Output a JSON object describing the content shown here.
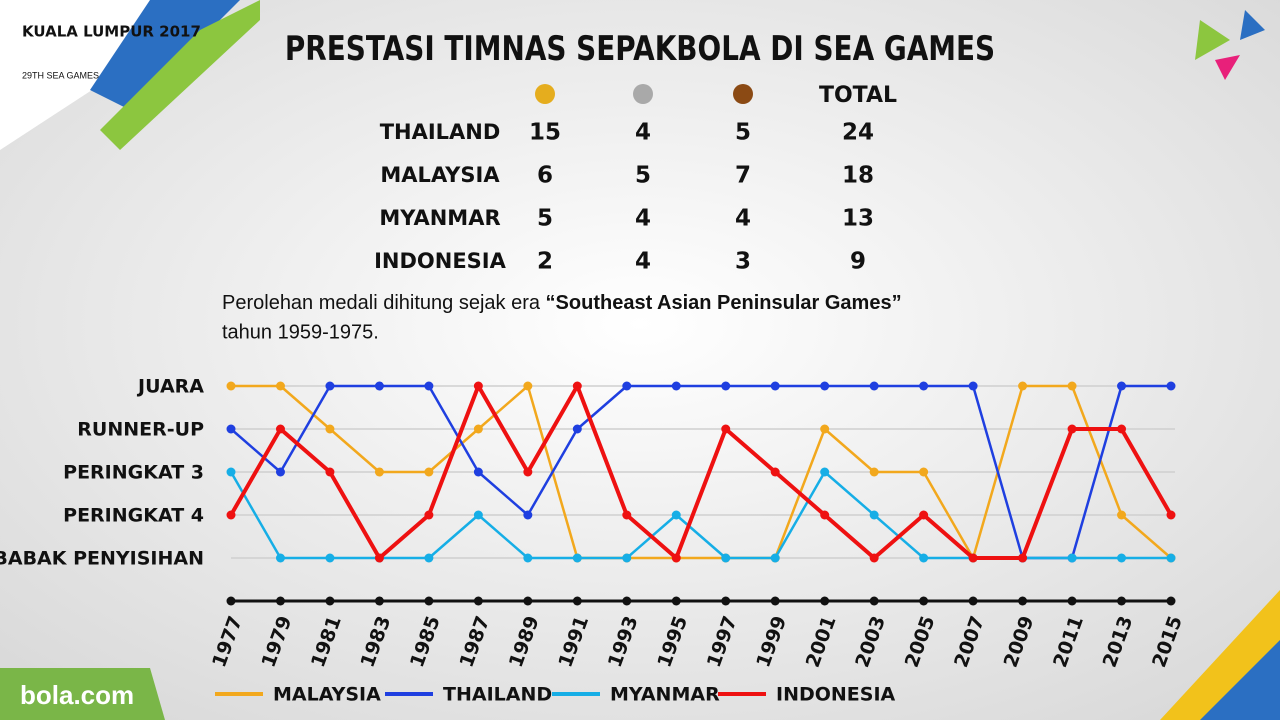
{
  "logo": {
    "event": "KUALA LUMPUR 2017",
    "edition": "29TH SEA GAMES",
    "brand": "bola.com"
  },
  "header": {
    "title": "PRESTASI TIMNAS SEPAKBOLA DI SEA GAMES"
  },
  "medal_table": {
    "medal_colors": [
      "#e5ad1e",
      "#a9a9a9",
      "#8b4a14"
    ],
    "total_header": "TOTAL",
    "rows": [
      [
        "THAILAND",
        "15",
        "4",
        "5",
        "24"
      ],
      [
        "MALAYSIA",
        "6",
        "5",
        "7",
        "18"
      ],
      [
        "MYANMAR",
        "5",
        "4",
        "4",
        "13"
      ],
      [
        "INDONESIA",
        "2",
        "4",
        "3",
        "9"
      ]
    ]
  },
  "note": {
    "text": "Perolehan medali dihitung sejak era ",
    "highlight": "“Southeast Asian Peninsular Games”",
    "tail": "tahun 1959-1975."
  },
  "chart_data": {
    "type": "line",
    "categories": [
      "1977",
      "1979",
      "1981",
      "1983",
      "1985",
      "1987",
      "1989",
      "1991",
      "1993",
      "1995",
      "1997",
      "1999",
      "2001",
      "2003",
      "2005",
      "2007",
      "2009",
      "2011",
      "2013",
      "2015"
    ],
    "ylim": [
      6,
      1
    ],
    "yticks": [
      {
        "value": 1,
        "label": "JUARA"
      },
      {
        "value": 2,
        "label": "RUNNER-UP"
      },
      {
        "value": 3,
        "label": "PERINGKAT 3"
      },
      {
        "value": 4,
        "label": "PERINGKAT 4"
      },
      {
        "value": 5,
        "label": "BABAK PENYISIHAN"
      }
    ],
    "grid": true,
    "series": [
      {
        "name": "MALAYSIA",
        "color": "#f2a81d",
        "values": [
          1,
          1,
          2,
          3,
          3,
          2,
          1,
          5,
          5,
          5,
          5,
          5,
          2,
          3,
          3,
          5,
          1,
          1,
          4,
          5
        ]
      },
      {
        "name": "THAILAND",
        "color": "#1f3fe0",
        "values": [
          2,
          3,
          1,
          1,
          1,
          3,
          4,
          2,
          1,
          1,
          1,
          1,
          1,
          1,
          1,
          1,
          5,
          5,
          1,
          1
        ]
      },
      {
        "name": "MYANMAR",
        "color": "#16aee6",
        "values": [
          3,
          5,
          5,
          5,
          5,
          4,
          5,
          5,
          5,
          4,
          5,
          5,
          3,
          4,
          5,
          5,
          5,
          5,
          5,
          5
        ]
      },
      {
        "name": "INDONESIA",
        "color": "#ee1111",
        "values": [
          4,
          2,
          3,
          5,
          4,
          1,
          3,
          1,
          4,
          5,
          2,
          3,
          4,
          5,
          4,
          5,
          5,
          2,
          2,
          4
        ]
      }
    ]
  }
}
